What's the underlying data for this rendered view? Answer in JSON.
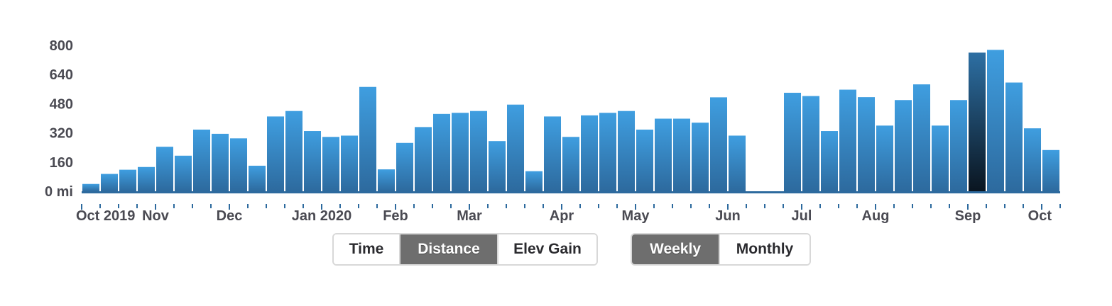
{
  "chart_data": {
    "type": "bar",
    "ylim": [
      0,
      800
    ],
    "y_ticks": [
      {
        "value": 800,
        "label": "800"
      },
      {
        "value": 640,
        "label": "640"
      },
      {
        "value": 480,
        "label": "480"
      },
      {
        "value": 320,
        "label": "320"
      },
      {
        "value": 160,
        "label": "160"
      },
      {
        "value": 0,
        "label": "0 mi"
      }
    ],
    "x_labels": [
      {
        "week": 0,
        "label": "Oct 2019"
      },
      {
        "week": 4,
        "label": "Nov"
      },
      {
        "week": 8,
        "label": "Dec"
      },
      {
        "week": 13,
        "label": "Jan 2020"
      },
      {
        "week": 17,
        "label": "Feb"
      },
      {
        "week": 21,
        "label": "Mar"
      },
      {
        "week": 26,
        "label": "Apr"
      },
      {
        "week": 30,
        "label": "May"
      },
      {
        "week": 35,
        "label": "Jun"
      },
      {
        "week": 39,
        "label": "Jul"
      },
      {
        "week": 43,
        "label": "Aug"
      },
      {
        "week": 48,
        "label": "Sep"
      },
      {
        "week": 52,
        "label": "Oct"
      }
    ],
    "values": [
      40,
      95,
      118,
      133,
      244,
      195,
      338,
      315,
      290,
      140,
      410,
      440,
      330,
      298,
      305,
      572,
      120,
      265,
      352,
      424,
      430,
      440,
      275,
      475,
      110,
      410,
      298,
      416,
      430,
      440,
      338,
      398,
      398,
      376,
      515,
      305,
      0,
      0,
      540,
      522,
      330,
      557,
      516,
      360,
      500,
      586,
      360,
      500,
      760,
      775,
      596,
      345,
      226
    ],
    "highlight_index": 48,
    "bar_color_top": "#3f9ee0",
    "bar_color_bottom": "#2d6a9e",
    "highlight_color_top": "#2d6fa3",
    "highlight_color_bottom": "#0a1520"
  },
  "controls": {
    "metric": {
      "options": [
        "Time",
        "Distance",
        "Elev Gain"
      ],
      "selected": "Distance"
    },
    "period": {
      "options": [
        "Weekly",
        "Monthly"
      ],
      "selected": "Weekly"
    }
  }
}
